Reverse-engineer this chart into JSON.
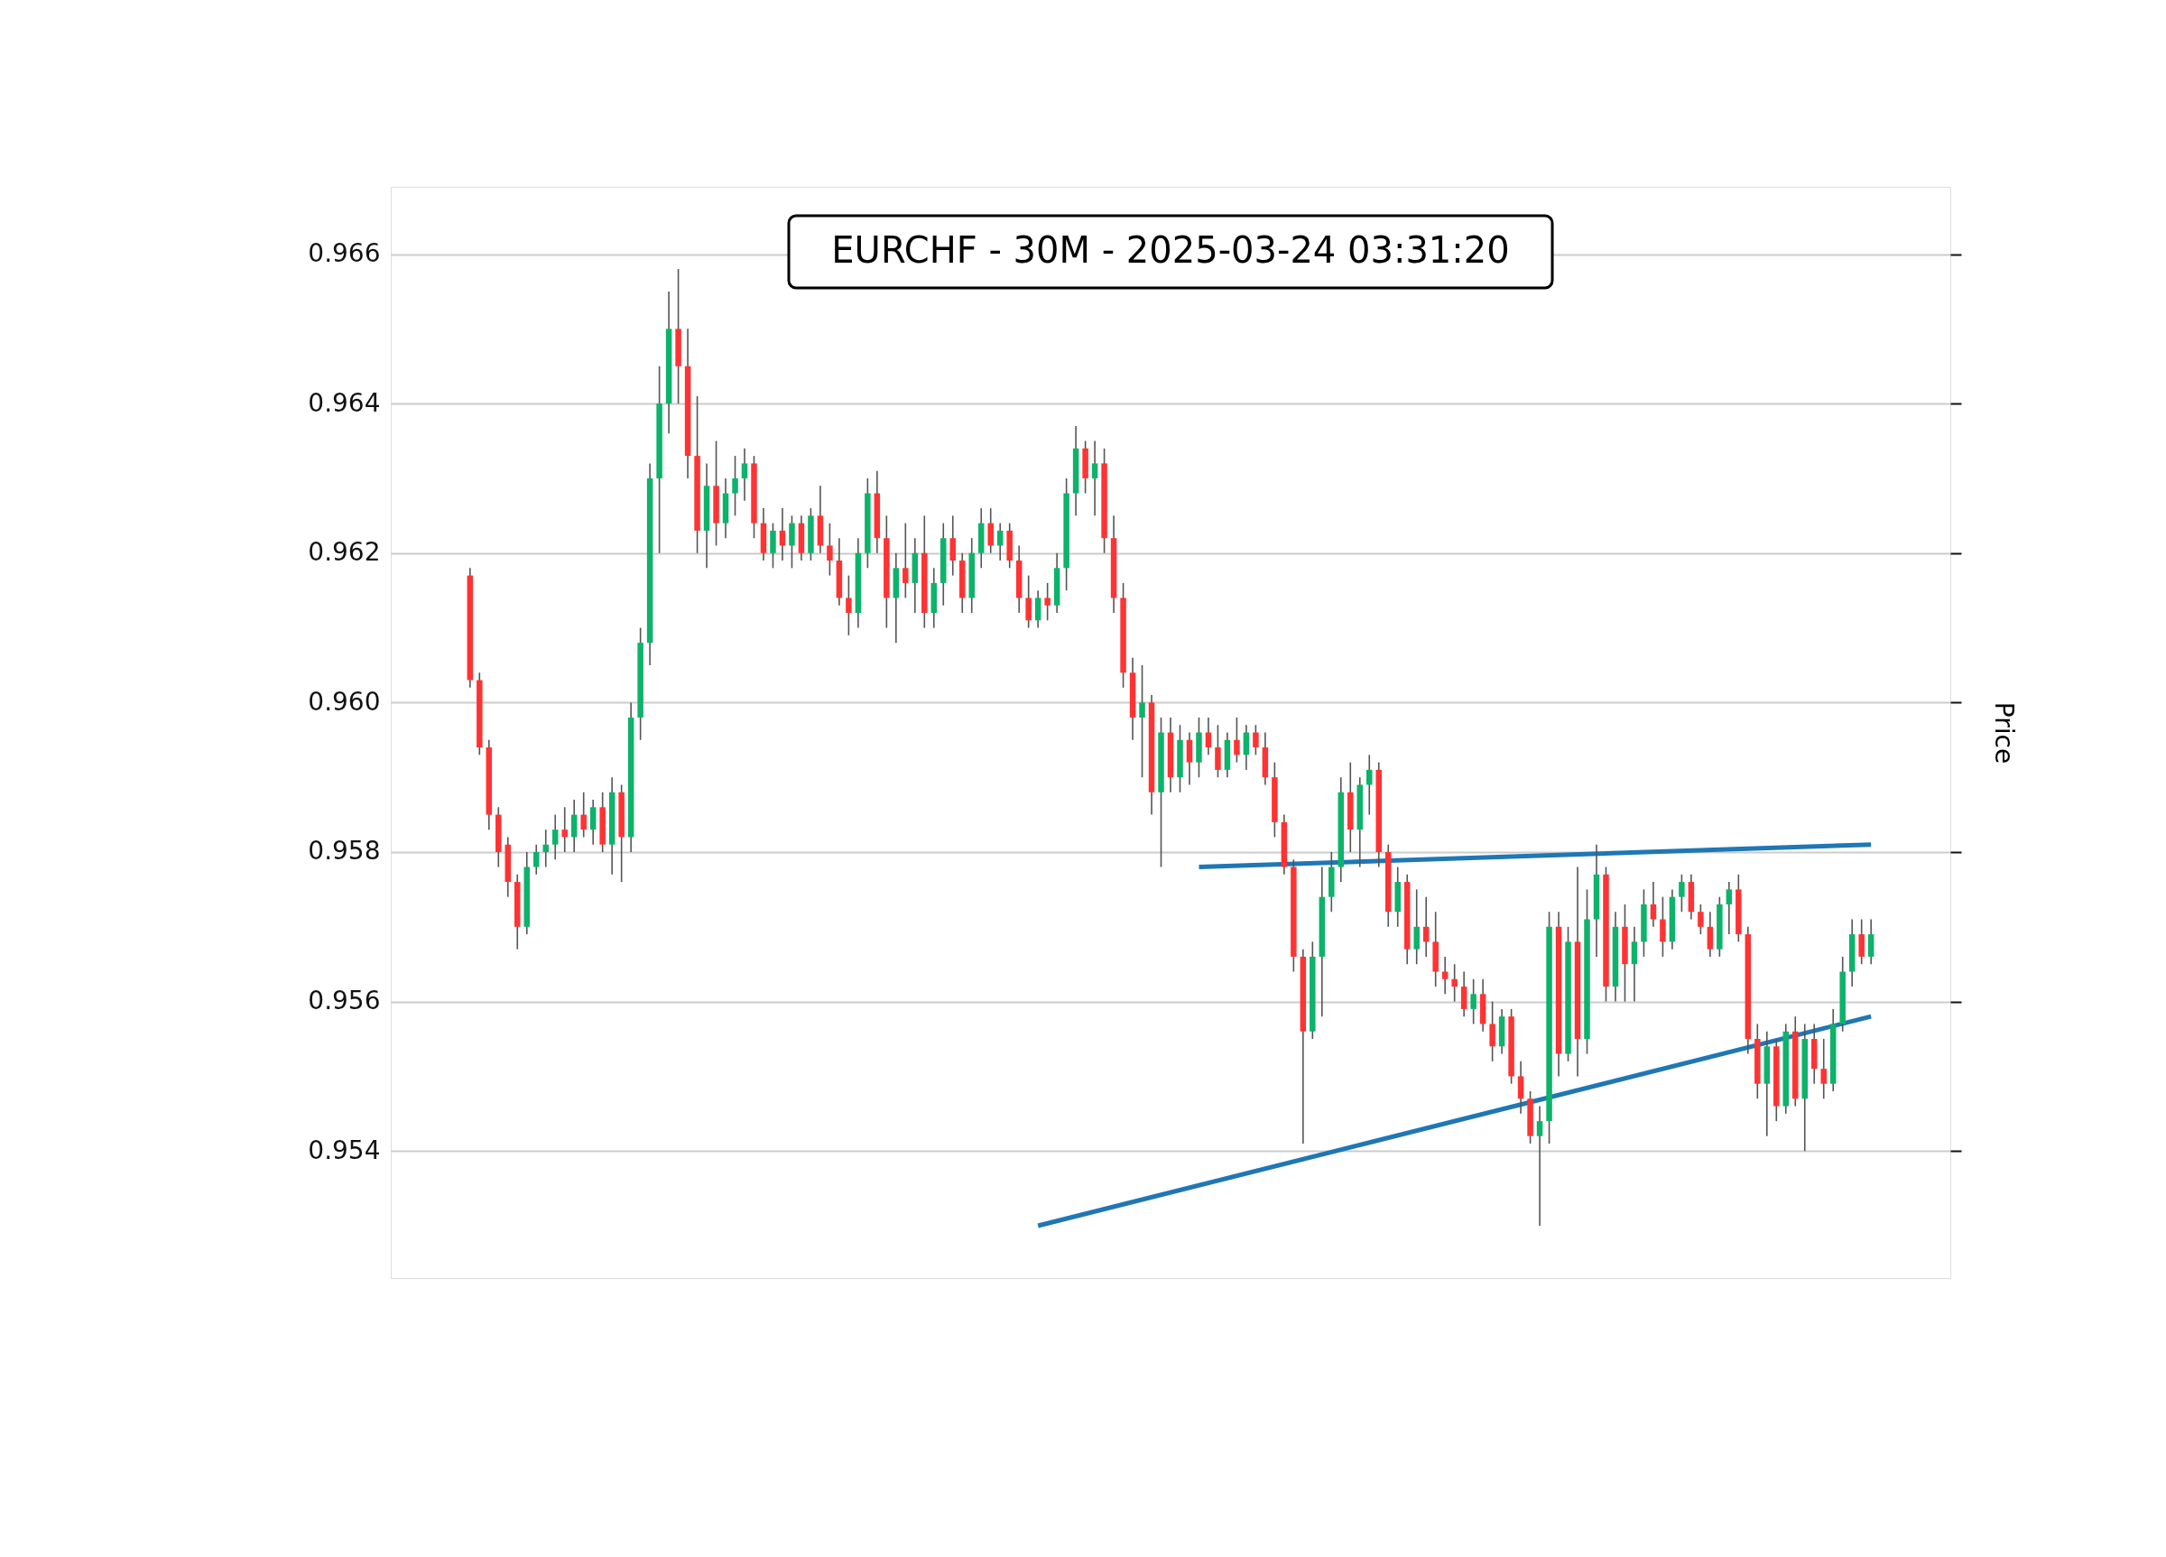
{
  "chart_data": {
    "type": "candlestick",
    "title": "EURCHF - 30M - 2025-03-24 03:31:20",
    "ylabel": "Price",
    "categories": [
      null,
      null,
      null,
      null,
      null,
      null,
      null,
      null,
      null,
      null,
      null,
      null,
      null,
      null,
      null,
      null,
      null,
      null,
      null,
      null,
      null,
      null,
      null,
      null,
      null,
      null,
      null,
      null,
      null,
      null,
      null,
      null,
      null,
      null,
      null,
      null,
      null,
      null,
      null,
      null,
      null,
      null,
      null,
      null,
      null,
      null,
      null,
      null,
      null,
      null,
      null,
      null,
      null,
      null,
      null,
      null,
      null,
      null,
      null,
      null,
      null,
      null,
      null,
      null,
      null,
      null,
      null,
      null,
      null,
      null,
      null,
      null,
      null,
      null,
      null,
      null,
      null,
      null,
      null,
      null,
      null,
      null,
      null,
      null,
      null,
      null,
      null,
      null,
      null,
      null,
      null,
      null,
      null,
      null,
      null,
      null,
      null,
      null,
      null,
      null,
      null,
      null,
      null,
      null,
      null,
      null,
      null,
      null,
      null,
      null,
      null,
      null,
      null,
      null,
      null,
      null,
      null,
      null,
      null,
      null,
      null,
      null,
      null,
      null,
      null,
      null,
      null,
      null,
      null,
      null,
      null,
      null,
      null,
      null,
      null,
      null,
      null,
      null,
      null,
      null,
      null,
      null,
      null,
      null,
      null,
      null,
      null,
      null,
      null
    ],
    "ohlc": [
      [
        0.9617,
        0.9618,
        0.9602,
        0.9603
      ],
      [
        0.9603,
        0.9604,
        0.9593,
        0.9594
      ],
      [
        0.9594,
        0.9595,
        0.9583,
        0.9585
      ],
      [
        0.9585,
        0.9586,
        0.9578,
        0.958
      ],
      [
        0.9581,
        0.9582,
        0.9574,
        0.9576
      ],
      [
        0.9576,
        0.9577,
        0.9567,
        0.957
      ],
      [
        0.957,
        0.958,
        0.9569,
        0.9578
      ],
      [
        0.9578,
        0.9581,
        0.9577,
        0.958
      ],
      [
        0.958,
        0.9583,
        0.9578,
        0.9581
      ],
      [
        0.9581,
        0.9585,
        0.9579,
        0.9583
      ],
      [
        0.9583,
        0.9586,
        0.958,
        0.9582
      ],
      [
        0.9582,
        0.9587,
        0.958,
        0.9585
      ],
      [
        0.9585,
        0.9588,
        0.9582,
        0.9583
      ],
      [
        0.9583,
        0.9587,
        0.9581,
        0.9586
      ],
      [
        0.9586,
        0.9588,
        0.958,
        0.9581
      ],
      [
        0.9581,
        0.959,
        0.9577,
        0.9588
      ],
      [
        0.9588,
        0.9589,
        0.9576,
        0.9582
      ],
      [
        0.9582,
        0.96,
        0.958,
        0.9598
      ],
      [
        0.9598,
        0.961,
        0.9595,
        0.9608
      ],
      [
        0.9608,
        0.9632,
        0.9605,
        0.963
      ],
      [
        0.963,
        0.9645,
        0.962,
        0.964
      ],
      [
        0.964,
        0.9655,
        0.9636,
        0.965
      ],
      [
        0.965,
        0.9658,
        0.964,
        0.9645
      ],
      [
        0.9645,
        0.965,
        0.963,
        0.9633
      ],
      [
        0.9633,
        0.9641,
        0.962,
        0.9623
      ],
      [
        0.9623,
        0.9632,
        0.9618,
        0.9629
      ],
      [
        0.9629,
        0.9635,
        0.9621,
        0.9624
      ],
      [
        0.9624,
        0.963,
        0.9622,
        0.9628
      ],
      [
        0.9628,
        0.9633,
        0.9625,
        0.963
      ],
      [
        0.963,
        0.9634,
        0.9627,
        0.9632
      ],
      [
        0.9632,
        0.9633,
        0.9622,
        0.9624
      ],
      [
        0.9624,
        0.9626,
        0.9619,
        0.962
      ],
      [
        0.962,
        0.9624,
        0.9618,
        0.9623
      ],
      [
        0.9623,
        0.9626,
        0.9619,
        0.9621
      ],
      [
        0.9621,
        0.9625,
        0.9618,
        0.9624
      ],
      [
        0.9624,
        0.9625,
        0.9619,
        0.962
      ],
      [
        0.962,
        0.9626,
        0.9619,
        0.9625
      ],
      [
        0.9625,
        0.9629,
        0.962,
        0.9621
      ],
      [
        0.9621,
        0.9624,
        0.9617,
        0.9619
      ],
      [
        0.9619,
        0.9622,
        0.9613,
        0.9614
      ],
      [
        0.9614,
        0.9617,
        0.9609,
        0.9612
      ],
      [
        0.9612,
        0.9622,
        0.961,
        0.962
      ],
      [
        0.962,
        0.963,
        0.9618,
        0.9628
      ],
      [
        0.9628,
        0.9631,
        0.962,
        0.9622
      ],
      [
        0.9622,
        0.9625,
        0.961,
        0.9614
      ],
      [
        0.9614,
        0.962,
        0.9608,
        0.9618
      ],
      [
        0.9618,
        0.9624,
        0.9614,
        0.9616
      ],
      [
        0.9616,
        0.9622,
        0.9612,
        0.962
      ],
      [
        0.962,
        0.9625,
        0.961,
        0.9612
      ],
      [
        0.9612,
        0.9618,
        0.961,
        0.9616
      ],
      [
        0.9616,
        0.9624,
        0.9613,
        0.9622
      ],
      [
        0.9622,
        0.9625,
        0.9617,
        0.9619
      ],
      [
        0.9619,
        0.962,
        0.9612,
        0.9614
      ],
      [
        0.9614,
        0.9622,
        0.9612,
        0.962
      ],
      [
        0.962,
        0.9626,
        0.9618,
        0.9624
      ],
      [
        0.9624,
        0.9626,
        0.962,
        0.9621
      ],
      [
        0.9621,
        0.9624,
        0.9619,
        0.9623
      ],
      [
        0.9623,
        0.9624,
        0.9618,
        0.9619
      ],
      [
        0.9619,
        0.9621,
        0.9612,
        0.9614
      ],
      [
        0.9614,
        0.9617,
        0.961,
        0.9611
      ],
      [
        0.9611,
        0.9615,
        0.961,
        0.9614
      ],
      [
        0.9614,
        0.9616,
        0.9611,
        0.9613
      ],
      [
        0.9613,
        0.962,
        0.9612,
        0.9618
      ],
      [
        0.9618,
        0.963,
        0.9615,
        0.9628
      ],
      [
        0.9628,
        0.9637,
        0.9625,
        0.9634
      ],
      [
        0.9634,
        0.9635,
        0.9628,
        0.963
      ],
      [
        0.963,
        0.9635,
        0.9625,
        0.9632
      ],
      [
        0.9632,
        0.9634,
        0.962,
        0.9622
      ],
      [
        0.9622,
        0.9625,
        0.9612,
        0.9614
      ],
      [
        0.9614,
        0.9616,
        0.9602,
        0.9604
      ],
      [
        0.9604,
        0.9606,
        0.9595,
        0.9598
      ],
      [
        0.9598,
        0.9605,
        0.959,
        0.96
      ],
      [
        0.96,
        0.9601,
        0.9585,
        0.9588
      ],
      [
        0.9588,
        0.9598,
        0.9578,
        0.9596
      ],
      [
        0.9596,
        0.9598,
        0.9588,
        0.959
      ],
      [
        0.959,
        0.9597,
        0.9588,
        0.9595
      ],
      [
        0.9595,
        0.9596,
        0.9589,
        0.9592
      ],
      [
        0.9592,
        0.9598,
        0.959,
        0.9596
      ],
      [
        0.9596,
        0.9598,
        0.9593,
        0.9594
      ],
      [
        0.9594,
        0.9597,
        0.959,
        0.9591
      ],
      [
        0.9591,
        0.9596,
        0.959,
        0.9595
      ],
      [
        0.9595,
        0.9598,
        0.9592,
        0.9593
      ],
      [
        0.9593,
        0.9597,
        0.9591,
        0.9596
      ],
      [
        0.9596,
        0.9597,
        0.9593,
        0.9594
      ],
      [
        0.9594,
        0.9596,
        0.9589,
        0.959
      ],
      [
        0.959,
        0.9592,
        0.9582,
        0.9584
      ],
      [
        0.9584,
        0.9585,
        0.9577,
        0.9578
      ],
      [
        0.9578,
        0.9579,
        0.9564,
        0.9566
      ],
      [
        0.9566,
        0.9567,
        0.9541,
        0.9556
      ],
      [
        0.9556,
        0.9568,
        0.9555,
        0.9566
      ],
      [
        0.9566,
        0.9578,
        0.9558,
        0.9574
      ],
      [
        0.9574,
        0.958,
        0.9572,
        0.9578
      ],
      [
        0.9578,
        0.959,
        0.9576,
        0.9588
      ],
      [
        0.9588,
        0.9592,
        0.958,
        0.9583
      ],
      [
        0.9583,
        0.959,
        0.9578,
        0.9589
      ],
      [
        0.9589,
        0.9593,
        0.9585,
        0.9591
      ],
      [
        0.9591,
        0.9592,
        0.9578,
        0.958
      ],
      [
        0.958,
        0.9581,
        0.957,
        0.9572
      ],
      [
        0.9572,
        0.9578,
        0.957,
        0.9576
      ],
      [
        0.9576,
        0.9577,
        0.9565,
        0.9567
      ],
      [
        0.9567,
        0.9575,
        0.9565,
        0.957
      ],
      [
        0.957,
        0.9574,
        0.9566,
        0.9568
      ],
      [
        0.9568,
        0.9572,
        0.9562,
        0.9564
      ],
      [
        0.9564,
        0.9566,
        0.9561,
        0.9563
      ],
      [
        0.9563,
        0.9565,
        0.956,
        0.9562
      ],
      [
        0.9562,
        0.9564,
        0.9558,
        0.9559
      ],
      [
        0.9559,
        0.9563,
        0.9557,
        0.9561
      ],
      [
        0.9561,
        0.9563,
        0.9556,
        0.9557
      ],
      [
        0.9557,
        0.956,
        0.9552,
        0.9554
      ],
      [
        0.9554,
        0.9559,
        0.9553,
        0.9558
      ],
      [
        0.9558,
        0.9559,
        0.9549,
        0.955
      ],
      [
        0.955,
        0.9552,
        0.9545,
        0.9547
      ],
      [
        0.9547,
        0.9548,
        0.9541,
        0.9542
      ],
      [
        0.9542,
        0.9546,
        0.953,
        0.9544
      ],
      [
        0.9544,
        0.9572,
        0.9541,
        0.957
      ],
      [
        0.957,
        0.9572,
        0.955,
        0.9553
      ],
      [
        0.9553,
        0.957,
        0.9552,
        0.9568
      ],
      [
        0.9568,
        0.9578,
        0.955,
        0.9555
      ],
      [
        0.9555,
        0.9575,
        0.9553,
        0.9571
      ],
      [
        0.9571,
        0.9581,
        0.9566,
        0.9577
      ],
      [
        0.9577,
        0.9578,
        0.956,
        0.9562
      ],
      [
        0.9562,
        0.9572,
        0.956,
        0.957
      ],
      [
        0.957,
        0.9573,
        0.956,
        0.9565
      ],
      [
        0.9565,
        0.957,
        0.956,
        0.9568
      ],
      [
        0.9568,
        0.9575,
        0.9566,
        0.9573
      ],
      [
        0.9573,
        0.9576,
        0.957,
        0.9571
      ],
      [
        0.9571,
        0.9574,
        0.9566,
        0.9568
      ],
      [
        0.9568,
        0.9575,
        0.9567,
        0.9574
      ],
      [
        0.9574,
        0.9577,
        0.9572,
        0.9576
      ],
      [
        0.9576,
        0.9577,
        0.9571,
        0.9572
      ],
      [
        0.9572,
        0.9573,
        0.9569,
        0.957
      ],
      [
        0.957,
        0.9572,
        0.9566,
        0.9567
      ],
      [
        0.9567,
        0.9574,
        0.9566,
        0.9573
      ],
      [
        0.9573,
        0.9576,
        0.9569,
        0.9575
      ],
      [
        0.9575,
        0.9577,
        0.9568,
        0.9569
      ],
      [
        0.9569,
        0.957,
        0.9553,
        0.9555
      ],
      [
        0.9555,
        0.9557,
        0.9547,
        0.9549
      ],
      [
        0.9549,
        0.9556,
        0.9542,
        0.9554
      ],
      [
        0.9554,
        0.9555,
        0.9544,
        0.9546
      ],
      [
        0.9546,
        0.9557,
        0.9545,
        0.9556
      ],
      [
        0.9556,
        0.9558,
        0.9546,
        0.9547
      ],
      [
        0.9547,
        0.9557,
        0.954,
        0.9555
      ],
      [
        0.9555,
        0.9557,
        0.9549,
        0.9551
      ],
      [
        0.9551,
        0.9555,
        0.9547,
        0.9549
      ],
      [
        0.9549,
        0.9559,
        0.9548,
        0.9557
      ],
      [
        0.9557,
        0.9566,
        0.9556,
        0.9564
      ],
      [
        0.9564,
        0.9571,
        0.9562,
        0.9569
      ],
      [
        0.9569,
        0.9571,
        0.9565,
        0.9566
      ],
      [
        0.9566,
        0.9571,
        0.9565,
        0.9569
      ]
    ],
    "series": [
      {
        "type": "line",
        "color": "#1f77b4",
        "values": [
          null,
          null,
          null,
          null,
          null,
          null,
          null,
          null,
          null,
          null,
          null,
          null,
          null,
          null,
          null,
          null,
          null,
          null,
          null,
          null,
          null,
          null,
          null,
          null,
          null,
          null,
          null,
          null,
          null,
          null,
          null,
          null,
          null,
          null,
          null,
          null,
          null,
          null,
          null,
          null,
          null,
          null,
          null,
          null,
          null,
          null,
          null,
          null,
          null,
          null,
          null,
          null,
          null,
          null,
          null,
          null,
          null,
          null,
          null,
          null,
          null,
          null,
          null,
          null,
          null,
          null,
          null,
          null,
          null,
          null,
          null,
          null,
          null,
          null,
          null,
          null,
          null,
          0.9578,
          null,
          null,
          null,
          null,
          null,
          null,
          null,
          null,
          null,
          null,
          null,
          null,
          null,
          null,
          null,
          null,
          null,
          null,
          null,
          null,
          null,
          null,
          null,
          null,
          null,
          null,
          null,
          null,
          null,
          null,
          null,
          null,
          null,
          null,
          null,
          null,
          null,
          null,
          null,
          null,
          null,
          null,
          null,
          null,
          null,
          null,
          null,
          null,
          null,
          null,
          null,
          null,
          null,
          null,
          null,
          null,
          null,
          null,
          null,
          null,
          null,
          null,
          null,
          null,
          null,
          null,
          null,
          null,
          null,
          null,
          0.9581
        ]
      },
      {
        "type": "line",
        "color": "#1f77b4",
        "values": [
          null,
          null,
          null,
          null,
          null,
          null,
          null,
          null,
          null,
          null,
          null,
          null,
          null,
          null,
          null,
          null,
          null,
          null,
          null,
          null,
          null,
          null,
          null,
          null,
          null,
          null,
          null,
          null,
          null,
          null,
          null,
          null,
          null,
          null,
          null,
          null,
          null,
          null,
          null,
          null,
          null,
          null,
          null,
          null,
          null,
          null,
          null,
          null,
          null,
          null,
          null,
          null,
          null,
          null,
          null,
          null,
          null,
          null,
          null,
          null,
          0.953,
          null,
          null,
          null,
          null,
          null,
          null,
          null,
          null,
          null,
          null,
          null,
          null,
          null,
          null,
          null,
          null,
          null,
          null,
          null,
          null,
          null,
          null,
          null,
          null,
          null,
          null,
          null,
          null,
          null,
          null,
          null,
          null,
          null,
          null,
          null,
          null,
          null,
          null,
          null,
          null,
          null,
          null,
          null,
          null,
          null,
          null,
          null,
          null,
          null,
          null,
          null,
          null,
          null,
          null,
          null,
          null,
          null,
          null,
          null,
          null,
          null,
          null,
          null,
          null,
          null,
          null,
          null,
          null,
          null,
          null,
          null,
          null,
          null,
          null,
          null,
          null,
          null,
          null,
          null,
          null,
          null,
          null,
          null,
          null,
          null,
          null,
          null,
          0.9558
        ]
      }
    ],
    "ylim": [
      0.9523,
      0.9669
    ],
    "yticks": [
      0.954,
      0.956,
      0.958,
      {
        "value": 0.96,
        "label": "0.960"
      },
      0.962,
      0.964,
      0.966
    ],
    "grid": "y",
    "tick_labels": "y"
  }
}
